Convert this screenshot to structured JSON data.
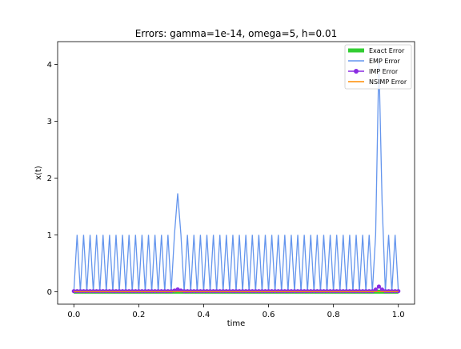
{
  "chart_data": {
    "type": "line",
    "title": "Errors: gamma=1e-14, omega=5, h=0.01",
    "xlabel": "time",
    "ylabel": "x(t)",
    "xlim": [
      -0.05,
      1.05
    ],
    "ylim": [
      -0.22,
      4.4
    ],
    "x_ticks": [
      0.0,
      0.2,
      0.4,
      0.6,
      0.8,
      1.0
    ],
    "x_tick_labels": [
      "0.0",
      "0.2",
      "0.4",
      "0.6",
      "0.8",
      "1.0"
    ],
    "y_ticks": [
      0,
      1,
      2,
      3,
      4
    ],
    "y_tick_labels": [
      "0",
      "1",
      "2",
      "3",
      "4"
    ],
    "grid": false,
    "legend_position": "top-right",
    "emp_spikes": [
      {
        "x": 0.32,
        "y": 1.73
      },
      {
        "x": 0.94,
        "y": 4.1
      },
      {
        "x": 0.95,
        "y": 1.55
      }
    ],
    "imp_bumps": [
      {
        "x": 0.32,
        "y": 0.03
      },
      {
        "x": 0.94,
        "y": 0.08
      }
    ],
    "series": [
      {
        "name": "Exact Error",
        "color": "#32cd32",
        "style": "thick",
        "values": "≈0 for all t in [0, 1]"
      },
      {
        "name": "EMP Error",
        "color": "#6495ed",
        "style": "line",
        "values": "sawtooth between 0 and 1 every 0.01 in time, spikes at t≈0.32 (1.73) and t≈0.94 (4.1)"
      },
      {
        "name": "IMP Error",
        "color": "#8a2be2",
        "style": "line-marker",
        "values": "≈0, small bumps at t≈0.32 and t≈0.94"
      },
      {
        "name": "NSIMP Error",
        "color": "#ff8c00",
        "style": "line",
        "values": "≈0 for all t in [0, 1]"
      }
    ]
  }
}
